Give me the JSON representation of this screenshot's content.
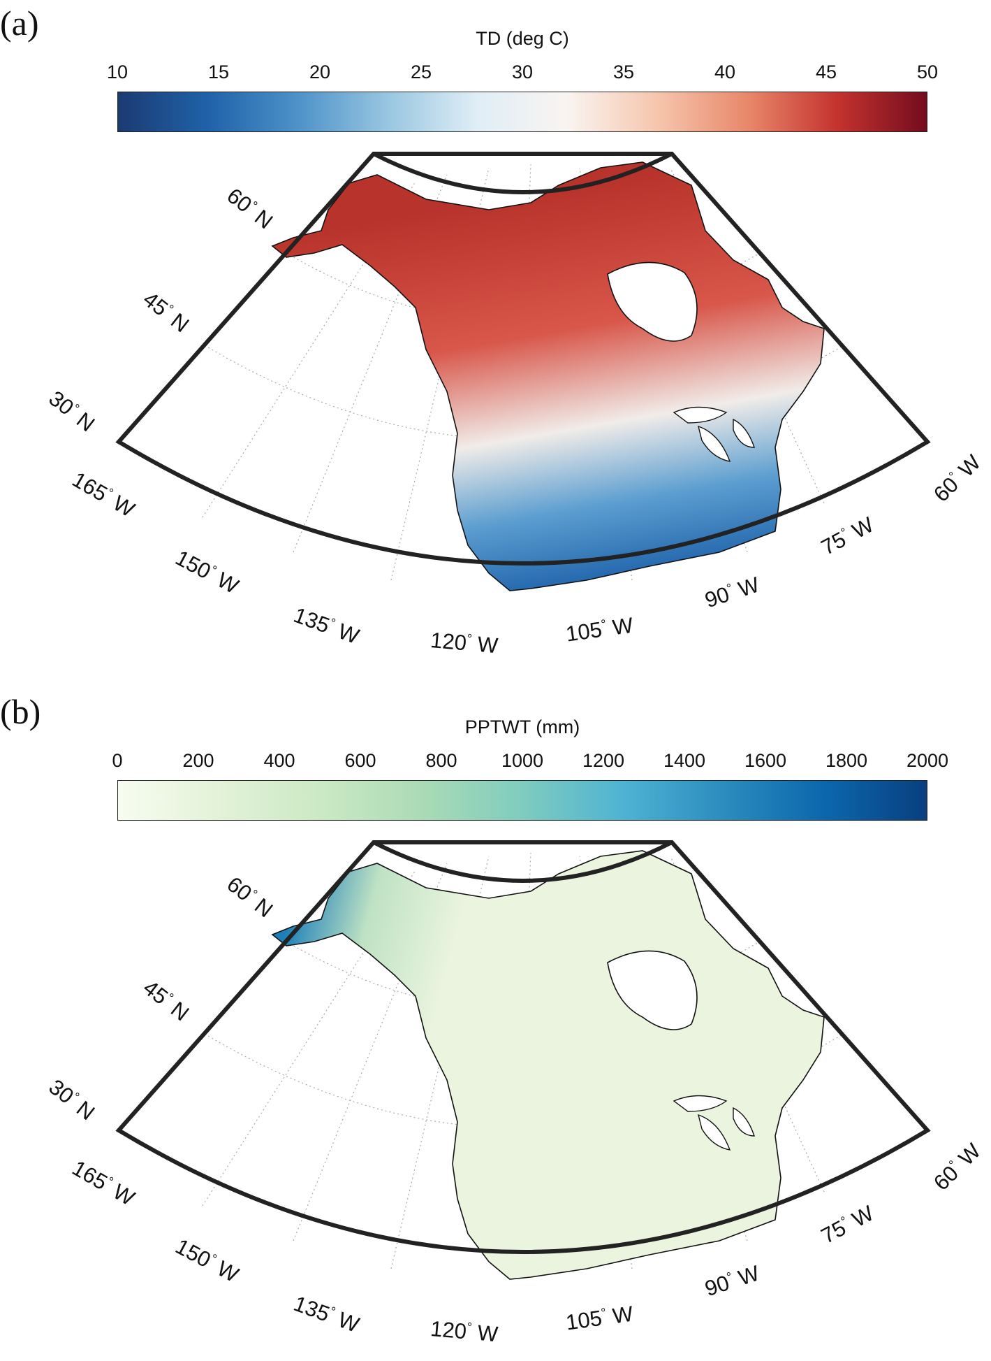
{
  "panels": [
    {
      "id": "a",
      "letter": "(a)",
      "colorbar": {
        "title": "TD (deg C)",
        "ticks": [
          "10",
          "15",
          "20",
          "25",
          "30",
          "35",
          "40",
          "45",
          "50"
        ],
        "min": 10,
        "max": 50,
        "colormap": [
          "#1c3a72",
          "#1f62a9",
          "#4d92c8",
          "#98c6e1",
          "#e0eef6",
          "#f9f4f1",
          "#f6c6ad",
          "#e8886b",
          "#c4332f",
          "#740c1e"
        ]
      },
      "map_colors": {
        "warm": "#d8564a",
        "hot": "#b8332b",
        "mid": "#f1ece9",
        "cool": "#5c9ed0",
        "cold": "#1f63ab"
      }
    },
    {
      "id": "b",
      "letter": "(b)",
      "colorbar": {
        "title": "PPTWT (mm)",
        "ticks": [
          "0",
          "200",
          "400",
          "600",
          "800",
          "1000",
          "1200",
          "1400",
          "1600",
          "1800",
          "2000"
        ],
        "min": 0,
        "max": 2000,
        "colormap": [
          "#f7fcf0",
          "#e3f2d8",
          "#cbe9c4",
          "#abdbb5",
          "#7fccbf",
          "#4eb3d3",
          "#2b8cbe",
          "#0c66ac",
          "#08407f"
        ]
      },
      "map_colors": {
        "base": "#eaf4df",
        "wet": "#1c7fb8",
        "mid": "#bfe2c4"
      }
    }
  ],
  "map_labels": {
    "lat": [
      {
        "deg": "60",
        "hemi": "N"
      },
      {
        "deg": "45",
        "hemi": "N"
      },
      {
        "deg": "30",
        "hemi": "N"
      }
    ],
    "lon": [
      {
        "deg": "165",
        "hemi": "W"
      },
      {
        "deg": "150",
        "hemi": "W"
      },
      {
        "deg": "135",
        "hemi": "W"
      },
      {
        "deg": "120",
        "hemi": "W"
      },
      {
        "deg": "105",
        "hemi": "W"
      },
      {
        "deg": "90",
        "hemi": "W"
      },
      {
        "deg": "75",
        "hemi": "W"
      },
      {
        "deg": "60",
        "hemi": "W"
      }
    ],
    "degree_symbol": "°"
  }
}
